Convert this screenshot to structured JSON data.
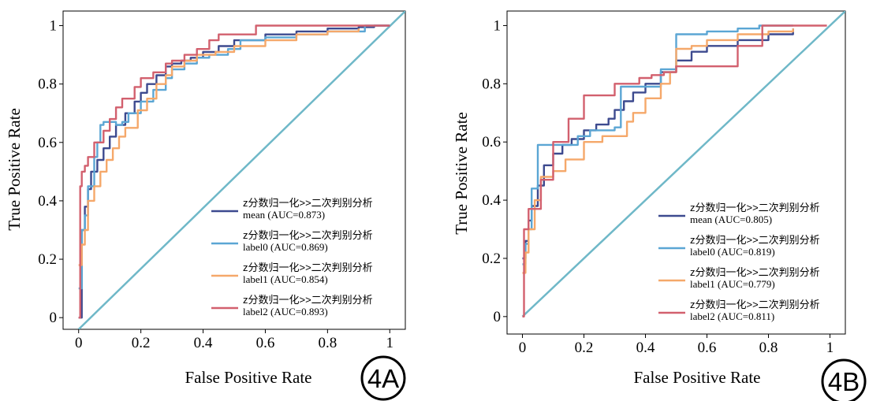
{
  "chart_data": [
    {
      "type": "line",
      "panel_label": "4A",
      "xlabel": "False Positive Rate",
      "ylabel": "True Positive Rate",
      "xlim": [
        -0.05,
        1.05
      ],
      "ylim": [
        -0.04,
        1.05
      ],
      "x_ticks": [
        {
          "value": 0,
          "label": "0"
        },
        {
          "value": 0.2,
          "label": "0.2"
        },
        {
          "value": 0.4,
          "label": "0.4"
        },
        {
          "value": 0.6,
          "label": "0.6"
        },
        {
          "value": 0.8,
          "label": "0.8"
        },
        {
          "value": 1,
          "label": "1"
        }
      ],
      "y_ticks": [
        {
          "value": 0,
          "label": "0"
        },
        {
          "value": 0.2,
          "label": "0.2"
        },
        {
          "value": 0.4,
          "label": "0.4"
        },
        {
          "value": 0.6,
          "label": "0.6"
        },
        {
          "value": 0.8,
          "label": "0.8"
        },
        {
          "value": 1,
          "label": "1"
        }
      ],
      "legend_placement": "lower-right",
      "diagonal": {
        "x": [
          0,
          1.05
        ],
        "y": [
          -0.04,
          1.05
        ],
        "color": "#6fb8c8"
      },
      "series": [
        {
          "name_line1": "z分数归一化>>二次判别分析",
          "name_line2": "mean (AUC=0.873)",
          "color": "#3d4a8f",
          "x": [
            0,
            0.01,
            0.02,
            0.03,
            0.04,
            0.06,
            0.08,
            0.1,
            0.12,
            0.15,
            0.18,
            0.2,
            0.22,
            0.25,
            0.28,
            0.3,
            0.33,
            0.36,
            0.4,
            0.45,
            0.5,
            0.6,
            0.7,
            0.8,
            0.9,
            0.95,
            1.0
          ],
          "y": [
            0,
            0.3,
            0.38,
            0.44,
            0.5,
            0.54,
            0.58,
            0.62,
            0.66,
            0.7,
            0.74,
            0.77,
            0.8,
            0.83,
            0.86,
            0.87,
            0.88,
            0.89,
            0.91,
            0.93,
            0.95,
            0.97,
            0.98,
            0.99,
            0.995,
            1.0,
            1.0
          ]
        },
        {
          "name_line1": "z分数归一化>>二次判别分析",
          "name_line2": "label0 (AUC=0.869)",
          "color": "#5ba6d4",
          "x": [
            0,
            0.01,
            0.02,
            0.03,
            0.05,
            0.06,
            0.07,
            0.08,
            0.1,
            0.12,
            0.14,
            0.16,
            0.2,
            0.24,
            0.28,
            0.3,
            0.34,
            0.38,
            0.42,
            0.48,
            0.52,
            0.6,
            0.7,
            0.8,
            0.92,
            1.0
          ],
          "y": [
            0.1,
            0.3,
            0.35,
            0.45,
            0.55,
            0.6,
            0.66,
            0.67,
            0.67,
            0.66,
            0.67,
            0.7,
            0.74,
            0.78,
            0.82,
            0.85,
            0.87,
            0.89,
            0.9,
            0.92,
            0.95,
            0.96,
            0.97,
            0.98,
            1.0,
            1.0
          ]
        },
        {
          "name_line1": "z分数归一化>>二次判别分析",
          "name_line2": "label1 (AUC=0.854)",
          "color": "#f5a86a",
          "x": [
            0,
            0.01,
            0.02,
            0.03,
            0.05,
            0.07,
            0.09,
            0.11,
            0.13,
            0.15,
            0.19,
            0.22,
            0.25,
            0.28,
            0.3,
            0.34,
            0.38,
            0.44,
            0.5,
            0.6,
            0.7,
            0.8,
            0.9
          ],
          "y": [
            0.18,
            0.25,
            0.3,
            0.4,
            0.45,
            0.5,
            0.54,
            0.58,
            0.62,
            0.65,
            0.71,
            0.75,
            0.8,
            0.83,
            0.86,
            0.88,
            0.9,
            0.91,
            0.93,
            0.95,
            0.97,
            0.98,
            0.99
          ]
        },
        {
          "name_line1": "z分数归一化>>二次判别分析",
          "name_line2": "label2 (AUC=0.893)",
          "color": "#d2606e",
          "x": [
            0,
            0.005,
            0.01,
            0.02,
            0.03,
            0.05,
            0.08,
            0.1,
            0.12,
            0.14,
            0.18,
            0.2,
            0.24,
            0.28,
            0.3,
            0.34,
            0.38,
            0.42,
            0.45,
            0.5,
            0.56,
            0.57,
            0.7,
            0.8,
            0.9,
            1.0
          ],
          "y": [
            0,
            0.45,
            0.5,
            0.52,
            0.55,
            0.6,
            0.64,
            0.68,
            0.72,
            0.75,
            0.79,
            0.82,
            0.84,
            0.87,
            0.88,
            0.9,
            0.92,
            0.95,
            0.97,
            0.97,
            0.97,
            1.0,
            1.0,
            1.0,
            1.0,
            1.0
          ]
        }
      ]
    },
    {
      "type": "line",
      "panel_label": "4B",
      "xlabel": "False Positive Rate",
      "ylabel": "True Positive Rate",
      "xlim": [
        -0.05,
        1.05
      ],
      "ylim": [
        -0.06,
        1.05
      ],
      "x_ticks": [
        {
          "value": 0,
          "label": "0"
        },
        {
          "value": 0.2,
          "label": "0.2"
        },
        {
          "value": 0.4,
          "label": "0.4"
        },
        {
          "value": 0.6,
          "label": "0.6"
        },
        {
          "value": 0.8,
          "label": "0.8"
        },
        {
          "value": 1,
          "label": "1"
        }
      ],
      "y_ticks": [
        {
          "value": 0,
          "label": "0"
        },
        {
          "value": 0.2,
          "label": "0.2"
        },
        {
          "value": 0.4,
          "label": "0.4"
        },
        {
          "value": 0.6,
          "label": "0.6"
        },
        {
          "value": 0.8,
          "label": "0.8"
        },
        {
          "value": 1,
          "label": "1"
        }
      ],
      "legend_placement": "lower-right",
      "diagonal": {
        "x": [
          0,
          1.05
        ],
        "y": [
          0,
          1.05
        ],
        "color": "#6fb8c8"
      },
      "series": [
        {
          "name_line1": "z分数归一化>>二次判别分析",
          "name_line2": "mean (AUC=0.805)",
          "color": "#3d4a8f",
          "x": [
            0,
            0.01,
            0.02,
            0.03,
            0.05,
            0.07,
            0.1,
            0.13,
            0.16,
            0.2,
            0.24,
            0.28,
            0.3,
            0.33,
            0.36,
            0.4,
            0.45,
            0.5,
            0.55,
            0.6,
            0.7,
            0.8,
            0.88
          ],
          "y": [
            0.2,
            0.26,
            0.33,
            0.38,
            0.45,
            0.52,
            0.56,
            0.59,
            0.61,
            0.64,
            0.66,
            0.68,
            0.71,
            0.74,
            0.77,
            0.8,
            0.84,
            0.88,
            0.91,
            0.93,
            0.95,
            0.97,
            0.99
          ]
        },
        {
          "name_line1": "z分数归一化>>二次判别分析",
          "name_line2": "label0 (AUC=0.819)",
          "color": "#5ba6d4",
          "x": [
            0,
            0.01,
            0.02,
            0.03,
            0.05,
            0.06,
            0.1,
            0.18,
            0.22,
            0.3,
            0.32,
            0.35,
            0.45,
            0.5,
            0.52,
            0.6,
            0.7,
            0.77,
            0.88
          ],
          "y": [
            0.18,
            0.25,
            0.3,
            0.44,
            0.59,
            0.59,
            0.59,
            0.62,
            0.64,
            0.65,
            0.79,
            0.79,
            0.85,
            0.97,
            0.97,
            0.98,
            0.99,
            1.0,
            1.0
          ]
        },
        {
          "name_line1": "z分数归一化>>二次判别分析",
          "name_line2": "label1 (AUC=0.779)",
          "color": "#f5a86a",
          "x": [
            0,
            0.01,
            0.02,
            0.04,
            0.06,
            0.1,
            0.14,
            0.2,
            0.26,
            0.3,
            0.34,
            0.36,
            0.4,
            0.45,
            0.48,
            0.5,
            0.55,
            0.6,
            0.7,
            0.8,
            0.88
          ],
          "y": [
            0.15,
            0.22,
            0.3,
            0.4,
            0.48,
            0.5,
            0.54,
            0.6,
            0.62,
            0.62,
            0.67,
            0.7,
            0.75,
            0.8,
            0.84,
            0.92,
            0.93,
            0.95,
            0.97,
            0.98,
            0.99
          ]
        },
        {
          "name_line1": "z分数归一化>>二次判别分析",
          "name_line2": "label2 (AUC=0.811)",
          "color": "#d2606e",
          "x": [
            0,
            0.005,
            0.02,
            0.06,
            0.1,
            0.15,
            0.2,
            0.3,
            0.38,
            0.42,
            0.46,
            0.5,
            0.55,
            0.62,
            0.7,
            0.74,
            0.78,
            0.85,
            0.92,
            0.99
          ],
          "y": [
            0,
            0.3,
            0.37,
            0.47,
            0.6,
            0.68,
            0.76,
            0.8,
            0.82,
            0.83,
            0.84,
            0.86,
            0.86,
            0.86,
            0.93,
            0.93,
            1.0,
            1.0,
            1.0,
            1.0
          ]
        }
      ]
    }
  ]
}
